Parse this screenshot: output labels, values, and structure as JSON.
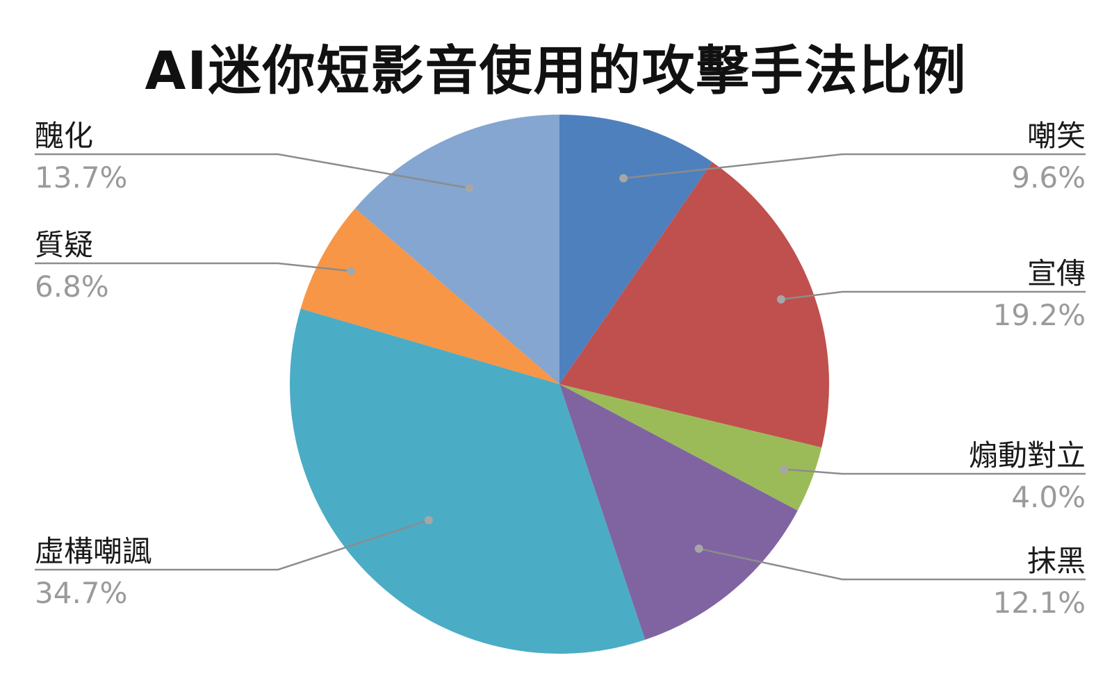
{
  "chart_data": {
    "type": "pie",
    "title": "AI迷你短影音使用的攻擊手法比例",
    "slices": [
      {
        "label": "嘲笑",
        "value": 9.6,
        "pct_label": "9.6%",
        "color": "#4e80bd"
      },
      {
        "label": "宣傳",
        "value": 19.2,
        "pct_label": "19.2%",
        "color": "#c0504d"
      },
      {
        "label": "煽動對立",
        "value": 4.0,
        "pct_label": "4.0%",
        "color": "#9bbb59"
      },
      {
        "label": "抹黑",
        "value": 12.1,
        "pct_label": "12.1%",
        "color": "#8064a2"
      },
      {
        "label": "虛構嘲諷",
        "value": 34.7,
        "pct_label": "34.7%",
        "color": "#4bacc6"
      },
      {
        "label": "質疑",
        "value": 6.8,
        "pct_label": "6.8%",
        "color": "#f79646"
      },
      {
        "label": "醜化",
        "value": 13.7,
        "pct_label": "13.7%",
        "color": "#84a6d0"
      }
    ],
    "start_angle": "12 o'clock",
    "direction": "clockwise"
  }
}
